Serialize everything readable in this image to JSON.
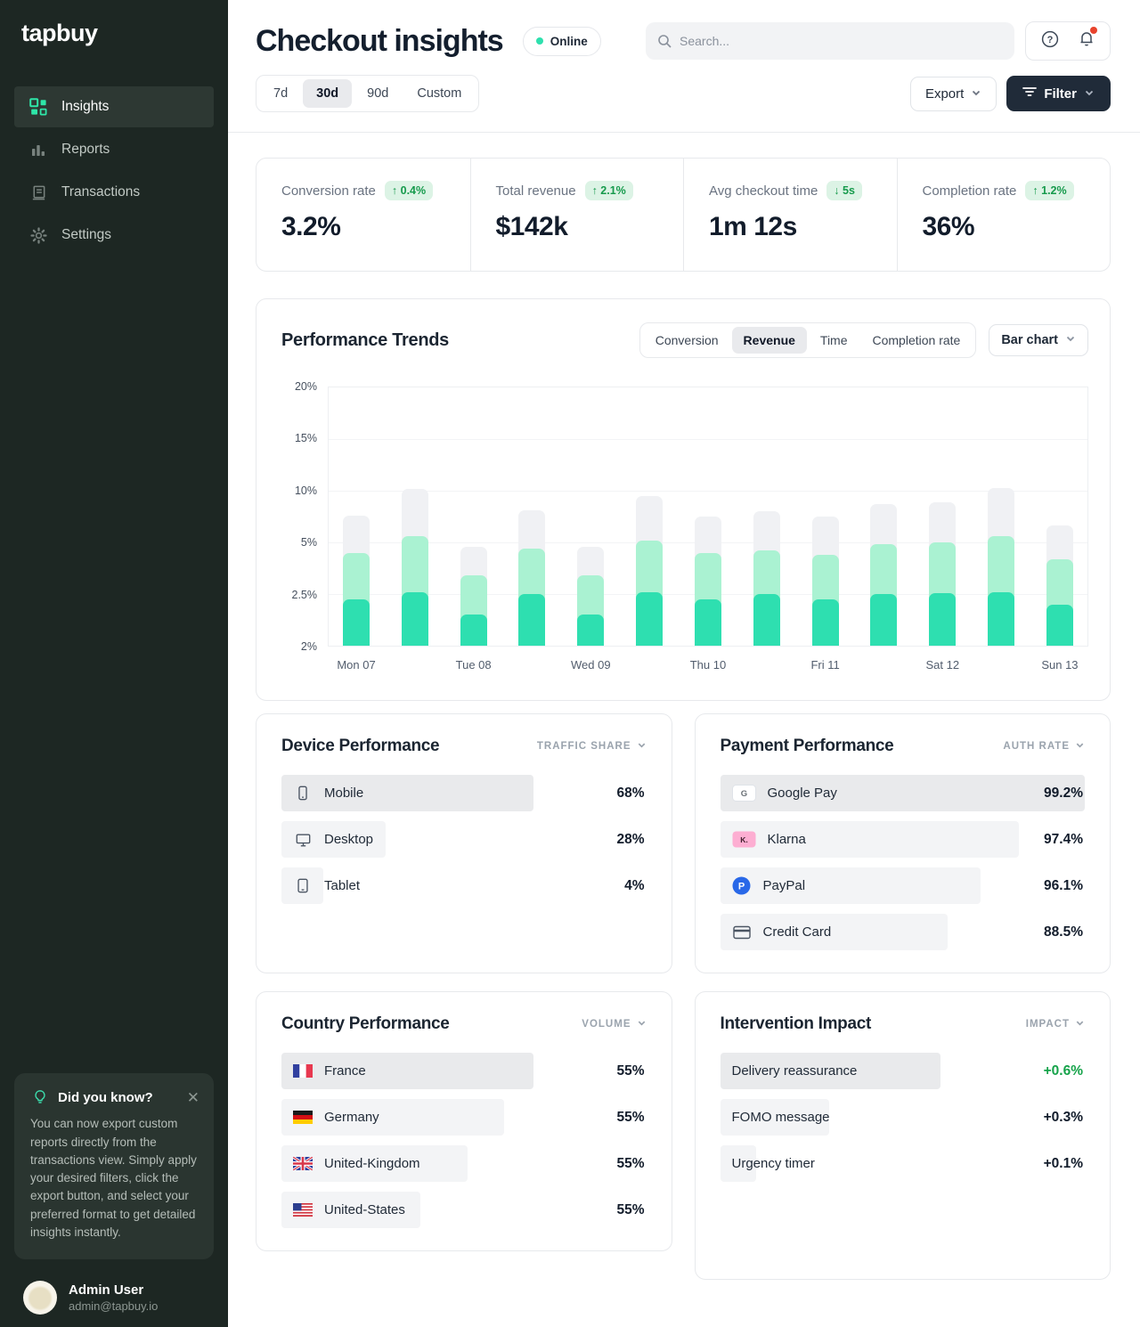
{
  "sidebar": {
    "logo": "tapbuy",
    "items": [
      {
        "label": "Insights",
        "icon": "grid-icon",
        "active": true
      },
      {
        "label": "Reports",
        "icon": "bar-chart-icon",
        "active": false
      },
      {
        "label": "Transactions",
        "icon": "receipt-icon",
        "active": false
      },
      {
        "label": "Settings",
        "icon": "gear-icon",
        "active": false
      }
    ],
    "toast": {
      "title": "Did you know?",
      "body": "You can now export custom reports directly from the transactions view. Simply apply your desired filters, click the export button, and select your preferred format to get detailed insights instantly.",
      "icon": "lightbulb-icon",
      "close_icon": "close-icon"
    },
    "user": {
      "name": "Admin User",
      "email": "admin@tapbuy.io"
    }
  },
  "header": {
    "title": "Checkout insights",
    "status": "Online",
    "search_placeholder": "Search...",
    "range_tabs": [
      "7d",
      "30d",
      "90d",
      "Custom"
    ],
    "active_range": "30d",
    "export_label": "Export",
    "filter_label": "Filter"
  },
  "kpis": [
    {
      "label": "Conversion rate",
      "value": "3.2%",
      "delta": "0.4%",
      "direction": "up"
    },
    {
      "label": "Total revenue",
      "value": "$142k",
      "delta": "2.1%",
      "direction": "up"
    },
    {
      "label": "Avg checkout time",
      "value": "1m 12s",
      "delta": "5s",
      "direction": "down"
    },
    {
      "label": "Completion rate",
      "value": "36%",
      "delta": "1.2%",
      "direction": "up"
    }
  ],
  "chart_data": {
    "type": "bar",
    "title": "Performance Trends",
    "tabs": [
      "Conversion",
      "Revenue",
      "Time",
      "Completion rate"
    ],
    "active_tab": "Revenue",
    "chart_type_label": "Bar chart",
    "y_tick_labels": [
      "20%",
      "15%",
      "10%",
      "5%",
      "2.5%",
      "2%"
    ],
    "y_tick_values": [
      20,
      15,
      10,
      5,
      2.5,
      2
    ],
    "x_labels": [
      "Mon 07",
      "Tue 08",
      "Wed 09",
      "Thu 10",
      "Fri 11",
      "Sat 12",
      "Sun 13"
    ],
    "grid": true,
    "legend": false,
    "series_colors": {
      "bottom": "#2EDFB0",
      "middle": "#AAF2D2",
      "top": "#F0F1F4"
    },
    "note": "stacked bars; values are cumulative segment tops in % on a non-linear axis; x labels sit under every second bar",
    "bars": [
      {
        "x": "Mon 07",
        "bottom": 2.45,
        "middle": 4.5,
        "top": 7.6
      },
      {
        "x": "",
        "bottom": 2.6,
        "middle": 5.6,
        "top": 10.2
      },
      {
        "x": "Tue 08",
        "bottom": 2.3,
        "middle": 3.4,
        "top": 4.8
      },
      {
        "x": "",
        "bottom": 2.5,
        "middle": 4.7,
        "top": 8.1
      },
      {
        "x": "Wed 09",
        "bottom": 2.3,
        "middle": 3.4,
        "top": 4.8
      },
      {
        "x": "",
        "bottom": 2.6,
        "middle": 5.2,
        "top": 9.5
      },
      {
        "x": "Thu 10",
        "bottom": 2.45,
        "middle": 4.5,
        "top": 7.5
      },
      {
        "x": "",
        "bottom": 2.5,
        "middle": 4.6,
        "top": 8.0
      },
      {
        "x": "Fri 11",
        "bottom": 2.45,
        "middle": 4.4,
        "top": 7.5
      },
      {
        "x": "",
        "bottom": 2.5,
        "middle": 4.9,
        "top": 8.7
      },
      {
        "x": "Sat 12",
        "bottom": 2.55,
        "middle": 5.0,
        "top": 8.9
      },
      {
        "x": "",
        "bottom": 2.6,
        "middle": 5.6,
        "top": 10.3
      },
      {
        "x": "Sun 13",
        "bottom": 2.4,
        "middle": 4.2,
        "top": 6.6
      }
    ]
  },
  "cards": {
    "device": {
      "title": "Device Performance",
      "sort_label": "Traffic share",
      "rows": [
        {
          "label": "Mobile",
          "icon": "phone-icon",
          "value": "68%",
          "bar": 0.69,
          "highlight": true
        },
        {
          "label": "Desktop",
          "icon": "monitor-icon",
          "value": "28%",
          "bar": 0.285,
          "highlight": false
        },
        {
          "label": "Tablet",
          "icon": "tablet-icon",
          "value": "4%",
          "bar": 0.115,
          "highlight": false
        }
      ]
    },
    "payment": {
      "title": "Payment Performance",
      "sort_label": "Auth rate",
      "rows": [
        {
          "label": "Google Pay",
          "icon": "gpay-badge",
          "value": "99.2%",
          "bar": 1.0,
          "highlight": true
        },
        {
          "label": "Klarna",
          "icon": "klarna-badge",
          "value": "97.4%",
          "bar": 0.82,
          "highlight": false
        },
        {
          "label": "PayPal",
          "icon": "paypal-badge",
          "value": "96.1%",
          "bar": 0.715,
          "highlight": false
        },
        {
          "label": "Credit Card",
          "icon": "credit-card-icon",
          "value": "88.5%",
          "bar": 0.625,
          "highlight": false
        }
      ]
    },
    "country": {
      "title": "Country Performance",
      "sort_label": "Volume",
      "rows": [
        {
          "label": "France",
          "icon": "france-flag-icon",
          "value": "55%",
          "bar": 0.69,
          "highlight": true
        },
        {
          "label": "Germany",
          "icon": "germany-flag-icon",
          "value": "55%",
          "bar": 0.61,
          "highlight": false
        },
        {
          "label": "United-Kingdom",
          "icon": "uk-flag-icon",
          "value": "55%",
          "bar": 0.51,
          "highlight": false
        },
        {
          "label": "United-States",
          "icon": "us-flag-icon",
          "value": "55%",
          "bar": 0.38,
          "highlight": false
        }
      ]
    },
    "impact": {
      "title": "Intervention Impact",
      "sort_label": "Impact",
      "rows": [
        {
          "label": "Delivery reassurance",
          "icon": "",
          "value": "+0.6%",
          "positive": true,
          "bar": 0.605,
          "highlight": true
        },
        {
          "label": "FOMO message",
          "icon": "",
          "value": "+0.3%",
          "positive": false,
          "bar": 0.3,
          "highlight": false
        },
        {
          "label": "Urgency timer",
          "icon": "",
          "value": "+0.1%",
          "positive": false,
          "bar": 0.1,
          "highlight": false
        }
      ]
    }
  },
  "colors": {
    "accent_teal": "#2EE0AE",
    "sidebar_bg": "#1D2723",
    "badge_green_bg": "#DCF3E5",
    "badge_green_text": "#169A4C",
    "positive_text": "#16A34A",
    "filter_button_bg": "#202B39",
    "alert_red": "#E8432D"
  }
}
